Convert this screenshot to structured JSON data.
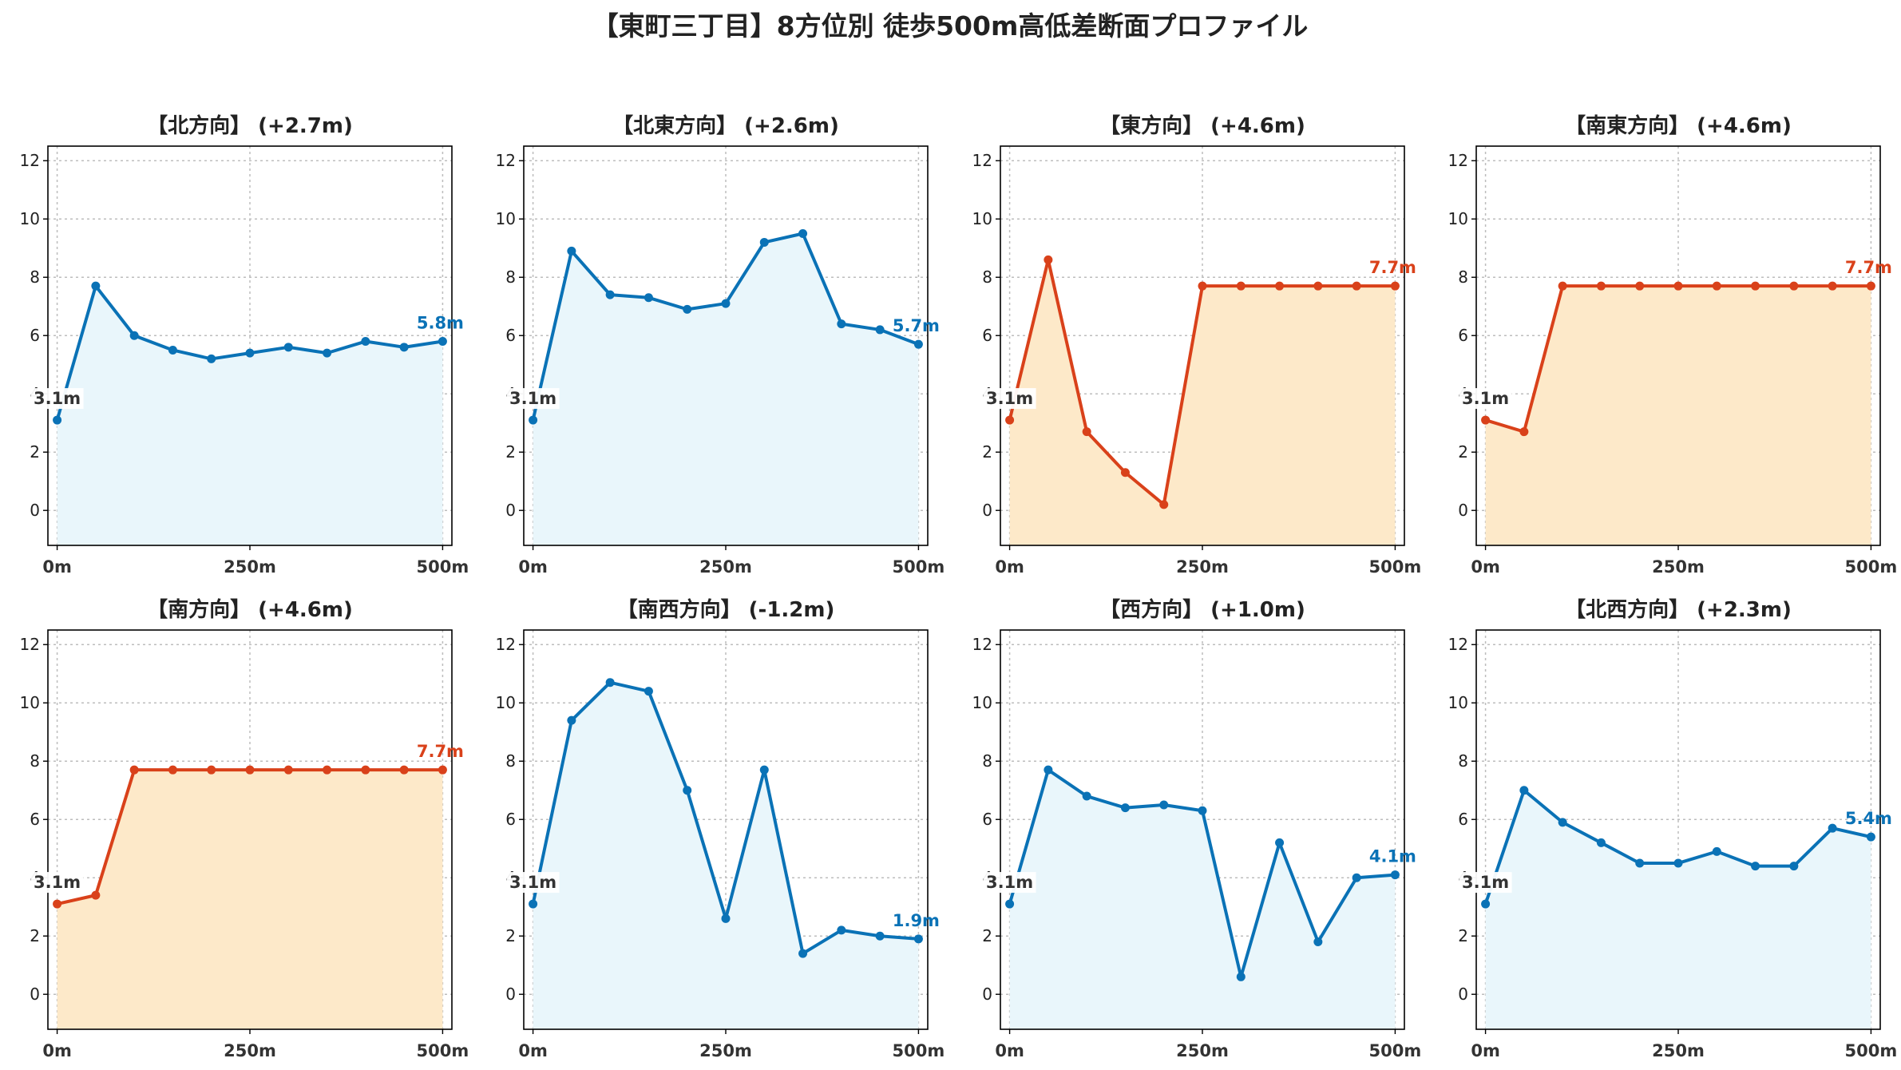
{
  "figure_title": "【東町三丁目】8方位別 徒歩500m高低差断面プロファイル",
  "colors": {
    "up_line": "#d9411a",
    "up_fill": "#fde9c9",
    "down_line": "#0a72b6",
    "down_fill": "#e9f6fb",
    "start_label": "#333333"
  },
  "chart_data": [
    {
      "type": "area",
      "title": "【北方向】 (+2.7m)",
      "tone": "down",
      "x": [
        0,
        50,
        100,
        150,
        200,
        250,
        300,
        350,
        400,
        450,
        500
      ],
      "y": [
        3.1,
        7.7,
        6.0,
        5.5,
        5.2,
        5.4,
        5.6,
        5.4,
        5.8,
        5.6,
        5.8
      ],
      "start_label": "3.1m",
      "end_label": "5.8m",
      "xticks": [
        0,
        250,
        500
      ],
      "xtick_labels": [
        "0m",
        "250m",
        "500m"
      ],
      "yticks": [
        0,
        2,
        4,
        6,
        8,
        10,
        12
      ],
      "ylim": [
        -1.2,
        12.5
      ],
      "xlim": [
        -12,
        512
      ],
      "grid": true
    },
    {
      "type": "area",
      "title": "【北東方向】 (+2.6m)",
      "tone": "down",
      "x": [
        0,
        50,
        100,
        150,
        200,
        250,
        300,
        350,
        400,
        450,
        500
      ],
      "y": [
        3.1,
        8.9,
        7.4,
        7.3,
        6.9,
        7.1,
        9.2,
        9.5,
        6.4,
        6.2,
        5.7
      ],
      "start_label": "3.1m",
      "end_label": "5.7m",
      "xticks": [
        0,
        250,
        500
      ],
      "xtick_labels": [
        "0m",
        "250m",
        "500m"
      ],
      "yticks": [
        0,
        2,
        4,
        6,
        8,
        10,
        12
      ],
      "ylim": [
        -1.2,
        12.5
      ],
      "xlim": [
        -12,
        512
      ],
      "grid": true
    },
    {
      "type": "area",
      "title": "【東方向】 (+4.6m)",
      "tone": "up",
      "x": [
        0,
        50,
        100,
        150,
        200,
        250,
        300,
        350,
        400,
        450,
        500
      ],
      "y": [
        3.1,
        8.6,
        2.7,
        1.3,
        0.2,
        7.7,
        7.7,
        7.7,
        7.7,
        7.7,
        7.7
      ],
      "start_label": "3.1m",
      "end_label": "7.7m",
      "xticks": [
        0,
        250,
        500
      ],
      "xtick_labels": [
        "0m",
        "250m",
        "500m"
      ],
      "yticks": [
        0,
        2,
        4,
        6,
        8,
        10,
        12
      ],
      "ylim": [
        -1.2,
        12.5
      ],
      "xlim": [
        -12,
        512
      ],
      "grid": true
    },
    {
      "type": "area",
      "title": "【南東方向】 (+4.6m)",
      "tone": "up",
      "x": [
        0,
        50,
        100,
        150,
        200,
        250,
        300,
        350,
        400,
        450,
        500
      ],
      "y": [
        3.1,
        2.7,
        7.7,
        7.7,
        7.7,
        7.7,
        7.7,
        7.7,
        7.7,
        7.7,
        7.7
      ],
      "start_label": "3.1m",
      "end_label": "7.7m",
      "xticks": [
        0,
        250,
        500
      ],
      "xtick_labels": [
        "0m",
        "250m",
        "500m"
      ],
      "yticks": [
        0,
        2,
        4,
        6,
        8,
        10,
        12
      ],
      "ylim": [
        -1.2,
        12.5
      ],
      "xlim": [
        -12,
        512
      ],
      "grid": true
    },
    {
      "type": "area",
      "title": "【南方向】 (+4.6m)",
      "tone": "up",
      "x": [
        0,
        50,
        100,
        150,
        200,
        250,
        300,
        350,
        400,
        450,
        500
      ],
      "y": [
        3.1,
        3.4,
        7.7,
        7.7,
        7.7,
        7.7,
        7.7,
        7.7,
        7.7,
        7.7,
        7.7
      ],
      "start_label": "3.1m",
      "end_label": "7.7m",
      "xticks": [
        0,
        250,
        500
      ],
      "xtick_labels": [
        "0m",
        "250m",
        "500m"
      ],
      "yticks": [
        0,
        2,
        4,
        6,
        8,
        10,
        12
      ],
      "ylim": [
        -1.2,
        12.5
      ],
      "xlim": [
        -12,
        512
      ],
      "grid": true
    },
    {
      "type": "area",
      "title": "【南西方向】 (-1.2m)",
      "tone": "down",
      "x": [
        0,
        50,
        100,
        150,
        200,
        250,
        300,
        350,
        400,
        450,
        500
      ],
      "y": [
        3.1,
        9.4,
        10.7,
        10.4,
        7.0,
        2.6,
        7.7,
        1.4,
        2.2,
        2.0,
        1.9
      ],
      "start_label": "3.1m",
      "end_label": "1.9m",
      "xticks": [
        0,
        250,
        500
      ],
      "xtick_labels": [
        "0m",
        "250m",
        "500m"
      ],
      "yticks": [
        0,
        2,
        4,
        6,
        8,
        10,
        12
      ],
      "ylim": [
        -1.2,
        12.5
      ],
      "xlim": [
        -12,
        512
      ],
      "grid": true
    },
    {
      "type": "area",
      "title": "【西方向】 (+1.0m)",
      "tone": "down",
      "x": [
        0,
        50,
        100,
        150,
        200,
        250,
        300,
        350,
        400,
        450,
        500
      ],
      "y": [
        3.1,
        7.7,
        6.8,
        6.4,
        6.5,
        6.3,
        0.6,
        5.2,
        1.8,
        4.0,
        4.1
      ],
      "start_label": "3.1m",
      "end_label": "4.1m",
      "xticks": [
        0,
        250,
        500
      ],
      "xtick_labels": [
        "0m",
        "250m",
        "500m"
      ],
      "yticks": [
        0,
        2,
        4,
        6,
        8,
        10,
        12
      ],
      "ylim": [
        -1.2,
        12.5
      ],
      "xlim": [
        -12,
        512
      ],
      "grid": true
    },
    {
      "type": "area",
      "title": "【北西方向】 (+2.3m)",
      "tone": "down",
      "x": [
        0,
        50,
        100,
        150,
        200,
        250,
        300,
        350,
        400,
        450,
        500
      ],
      "y": [
        3.1,
        7.0,
        5.9,
        5.2,
        4.5,
        4.5,
        4.9,
        4.4,
        4.4,
        5.7,
        5.4
      ],
      "start_label": "3.1m",
      "end_label": "5.4m",
      "xticks": [
        0,
        250,
        500
      ],
      "xtick_labels": [
        "0m",
        "250m",
        "500m"
      ],
      "yticks": [
        0,
        2,
        4,
        6,
        8,
        10,
        12
      ],
      "ylim": [
        -1.2,
        12.5
      ],
      "xlim": [
        -12,
        512
      ],
      "grid": true
    }
  ]
}
